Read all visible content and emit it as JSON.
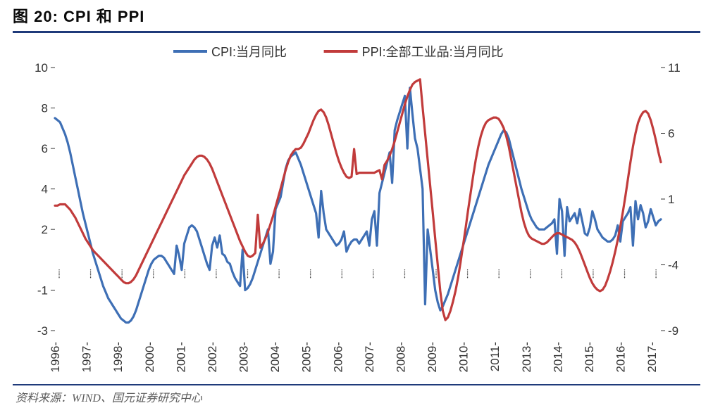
{
  "title": "图 20: CPI 和 PPI",
  "source": "资料来源：WIND、国元证券研究中心",
  "chart": {
    "type": "line",
    "background_color": "#ffffff",
    "rule_color": "#1f3a7a",
    "axis_color": "#333333",
    "tick_font_size": 17,
    "tick_color": "#333333",
    "xlabel_rotation": -90,
    "y_left": {
      "min": -3,
      "max": 10,
      "ticks": [
        -3,
        -1,
        2,
        4,
        6,
        8,
        10
      ]
    },
    "y_right": {
      "min": -9,
      "max": 11,
      "ticks": [
        -9,
        -4,
        1,
        6,
        11
      ]
    },
    "x_categories": [
      "1996-",
      "1997-",
      "1998-",
      "2000-",
      "2001-",
      "2002-",
      "2003-",
      "2004-",
      "2005-",
      "2006-",
      "2007-",
      "2008-",
      "2009-",
      "2010-",
      "2011-",
      "2013-",
      "2014-",
      "2015-",
      "2016-",
      "2017-"
    ],
    "x_tick_style": "dotted",
    "line_width": 3.2,
    "legend": {
      "position": "top-center",
      "font_size": 18,
      "swatch_width": 48,
      "swatch_height": 4
    },
    "series": [
      {
        "name": "CPI:当月同比",
        "axis": "left",
        "color": "#3e6fb5",
        "data": [
          7.5,
          7.4,
          7.3,
          7.0,
          6.7,
          6.3,
          5.8,
          5.2,
          4.6,
          4.0,
          3.4,
          2.8,
          2.3,
          1.8,
          1.3,
          0.8,
          0.4,
          0.0,
          -0.4,
          -0.8,
          -1.1,
          -1.4,
          -1.6,
          -1.8,
          -2.0,
          -2.2,
          -2.4,
          -2.5,
          -2.6,
          -2.6,
          -2.5,
          -2.3,
          -2.0,
          -1.6,
          -1.2,
          -0.8,
          -0.4,
          0.0,
          0.3,
          0.5,
          0.6,
          0.7,
          0.7,
          0.6,
          0.4,
          0.2,
          0.0,
          -0.2,
          1.2,
          0.7,
          0.0,
          1.3,
          1.7,
          2.1,
          2.2,
          2.1,
          1.9,
          1.5,
          1.1,
          0.7,
          0.3,
          0.0,
          1.2,
          1.6,
          1.1,
          1.7,
          0.8,
          0.7,
          0.4,
          0.3,
          -0.1,
          -0.4,
          -0.6,
          -0.8,
          1.0,
          -1.0,
          -0.9,
          -0.7,
          -0.4,
          0.0,
          0.4,
          0.8,
          1.2,
          1.6,
          2.0,
          0.3,
          0.9,
          3.0,
          3.3,
          3.6,
          4.3,
          5.0,
          5.4,
          5.6,
          5.7,
          5.8,
          5.5,
          5.2,
          4.8,
          4.4,
          4.0,
          3.6,
          3.2,
          2.8,
          1.6,
          3.9,
          2.8,
          2.0,
          1.8,
          1.6,
          1.4,
          1.2,
          1.3,
          1.5,
          1.9,
          0.9,
          1.2,
          1.4,
          1.5,
          1.5,
          1.3,
          1.5,
          1.7,
          1.9,
          1.2,
          2.5,
          2.9,
          1.2,
          3.8,
          4.3,
          4.8,
          5.3,
          5.8,
          4.3,
          6.9,
          7.4,
          7.8,
          8.2,
          8.6,
          6.0,
          9.0,
          7.7,
          6.5,
          6.0,
          5.0,
          4.0,
          -1.7,
          2.0,
          1.0,
          0.0,
          -1.0,
          -1.6,
          -2.0,
          -1.8,
          -1.5,
          -1.2,
          -0.8,
          -0.4,
          0.0,
          0.4,
          0.8,
          1.2,
          1.6,
          2.0,
          2.4,
          2.8,
          3.2,
          3.6,
          4.0,
          4.4,
          4.8,
          5.2,
          5.5,
          5.8,
          6.1,
          6.4,
          6.7,
          6.9,
          6.8,
          6.5,
          6.0,
          5.5,
          5.0,
          4.5,
          4.0,
          3.6,
          3.2,
          2.8,
          2.5,
          2.3,
          2.1,
          2.0,
          2.0,
          2.0,
          2.1,
          2.2,
          2.3,
          2.5,
          0.8,
          3.5,
          2.9,
          0.7,
          3.1,
          2.4,
          2.6,
          2.8,
          2.3,
          3.0,
          2.4,
          1.8,
          1.7,
          2.1,
          2.9,
          2.5,
          2.0,
          1.8,
          1.6,
          1.5,
          1.4,
          1.4,
          1.5,
          1.7,
          2.2,
          1.4,
          2.4,
          2.6,
          2.8,
          3.1,
          1.2,
          3.4,
          2.5,
          3.2,
          2.8,
          2.1,
          2.4,
          3.0,
          2.6,
          2.2,
          2.4,
          2.5
        ]
      },
      {
        "name": "PPI:全部工业品:当月同比",
        "axis": "right",
        "color": "#c13b3b",
        "data": [
          0.5,
          0.5,
          0.6,
          0.6,
          0.6,
          0.4,
          0.2,
          -0.1,
          -0.4,
          -0.8,
          -1.2,
          -1.6,
          -2.0,
          -2.3,
          -2.6,
          -2.9,
          -3.1,
          -3.3,
          -3.5,
          -3.7,
          -3.9,
          -4.1,
          -4.3,
          -4.5,
          -4.7,
          -4.9,
          -5.1,
          -5.3,
          -5.4,
          -5.4,
          -5.3,
          -5.1,
          -4.8,
          -4.4,
          -4.0,
          -3.6,
          -3.2,
          -2.8,
          -2.4,
          -2.0,
          -1.6,
          -1.2,
          -0.8,
          -0.4,
          0.0,
          0.4,
          0.8,
          1.2,
          1.6,
          2.0,
          2.4,
          2.8,
          3.1,
          3.4,
          3.7,
          4.0,
          4.2,
          4.3,
          4.3,
          4.2,
          4.0,
          3.7,
          3.3,
          2.8,
          2.3,
          1.8,
          1.3,
          0.8,
          0.3,
          -0.2,
          -0.7,
          -1.2,
          -1.7,
          -2.2,
          -2.6,
          -3.0,
          -3.3,
          -3.4,
          -3.3,
          -3.1,
          -0.2,
          -2.7,
          -2.4,
          -2.0,
          -1.5,
          -0.9,
          -0.3,
          0.4,
          1.1,
          1.8,
          2.5,
          3.2,
          3.8,
          4.3,
          4.6,
          4.8,
          4.8,
          4.9,
          5.2,
          5.6,
          6.0,
          6.5,
          7.0,
          7.4,
          7.7,
          7.8,
          7.6,
          7.2,
          6.6,
          5.9,
          5.2,
          4.5,
          3.9,
          3.4,
          3.0,
          2.7,
          2.6,
          2.7,
          4.8,
          2.9,
          3.0,
          3.0,
          3.0,
          3.0,
          3.0,
          3.0,
          3.0,
          3.1,
          3.2,
          2.5,
          3.6,
          3.9,
          4.3,
          4.8,
          5.4,
          6.1,
          6.8,
          7.5,
          8.2,
          8.8,
          9.3,
          9.7,
          9.9,
          10.0,
          10.1,
          8.0,
          6.0,
          4.0,
          2.0,
          0.0,
          -2.0,
          -4.0,
          -6.0,
          -7.5,
          -8.2,
          -8.0,
          -7.5,
          -6.8,
          -6.0,
          -5.0,
          -3.8,
          -2.5,
          -1.2,
          0.2,
          1.5,
          2.8,
          4.0,
          5.0,
          5.8,
          6.4,
          6.8,
          7.0,
          7.1,
          7.2,
          7.2,
          7.1,
          6.8,
          6.4,
          5.8,
          5.0,
          4.0,
          3.0,
          2.0,
          1.0,
          0.0,
          -0.8,
          -1.4,
          -1.8,
          -2.0,
          -2.1,
          -2.2,
          -2.3,
          -2.4,
          -2.4,
          -2.3,
          -2.1,
          -1.9,
          -1.7,
          -1.6,
          -1.6,
          -1.7,
          -1.8,
          -1.9,
          -2.0,
          -2.1,
          -2.3,
          -2.6,
          -3.0,
          -3.5,
          -4.0,
          -4.5,
          -5.0,
          -5.4,
          -5.7,
          -5.9,
          -6.0,
          -5.9,
          -5.6,
          -5.1,
          -4.5,
          -3.8,
          -3.0,
          -2.1,
          -1.1,
          0.0,
          1.2,
          2.5,
          3.8,
          5.0,
          6.0,
          6.8,
          7.3,
          7.6,
          7.7,
          7.5,
          7.0,
          6.3,
          5.5,
          4.6,
          3.8
        ]
      }
    ]
  }
}
